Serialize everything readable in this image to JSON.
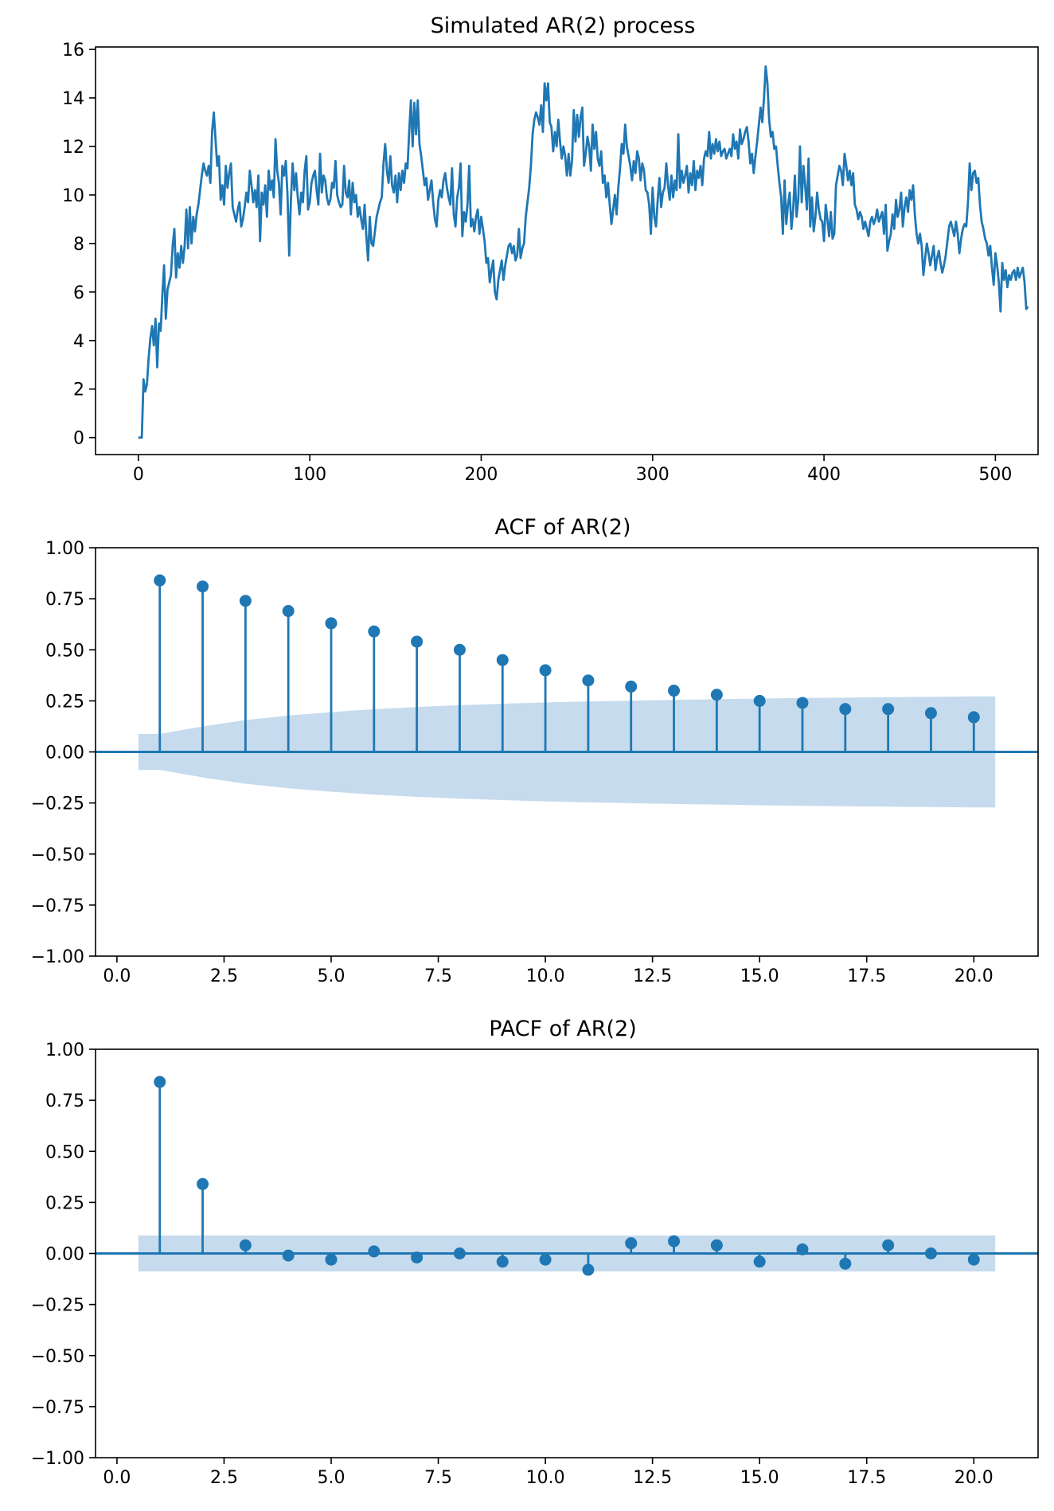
{
  "chart_data": [
    {
      "id": "series",
      "type": "line",
      "title": "Simulated AR(2) process",
      "xlabel": "",
      "ylabel": "",
      "xlim": [
        -25,
        524.9
      ],
      "ylim": [
        -0.7,
        16.1
      ],
      "x_ticks": [
        0,
        100,
        200,
        300,
        400,
        500
      ],
      "x_tick_labels": [
        "0",
        "100",
        "200",
        "300",
        "400",
        "500"
      ],
      "y_ticks": [
        0,
        2,
        4,
        6,
        8,
        10,
        12,
        14,
        16
      ],
      "y_tick_labels": [
        "0",
        "2",
        "4",
        "6",
        "8",
        "10",
        "12",
        "14",
        "16"
      ],
      "grid": false,
      "color": "#1f77b4",
      "series": [
        {
          "name": "AR(2)",
          "x_start": 0,
          "x_step": 1,
          "values": [
            0.0,
            0.0,
            0.0,
            2.4,
            1.9,
            2.2,
            3.3,
            4.1,
            4.6,
            3.8,
            4.9,
            2.9,
            4.7,
            4.4,
            5.9,
            7.1,
            4.9,
            6.1,
            6.4,
            6.7,
            7.9,
            8.6,
            6.6,
            7.6,
            7.0,
            7.9,
            7.2,
            7.9,
            9.4,
            7.8,
            9.5,
            8.0,
            9.1,
            8.5,
            9.2,
            9.6,
            10.2,
            10.8,
            11.3,
            11.0,
            10.8,
            11.2,
            10.5,
            12.6,
            13.4,
            12.3,
            11.2,
            11.6,
            9.8,
            10.4,
            9.6,
            11.2,
            10.3,
            10.9,
            11.3,
            9.5,
            9.2,
            8.9,
            9.4,
            9.7,
            8.7,
            9.0,
            9.5,
            10.1,
            9.7,
            11.0,
            10.4,
            9.7,
            10.2,
            9.5,
            10.8,
            8.1,
            10.1,
            9.6,
            10.4,
            9.1,
            11.0,
            10.2,
            10.6,
            9.9,
            12.3,
            11.0,
            10.5,
            9.2,
            11.2,
            10.8,
            11.4,
            10.0,
            7.5,
            9.8,
            11.3,
            10.2,
            10.9,
            9.9,
            9.2,
            10.1,
            9.7,
            11.0,
            11.6,
            9.4,
            9.7,
            10.5,
            10.8,
            11.0,
            10.2,
            9.6,
            11.7,
            10.1,
            10.8,
            10.6,
            9.9,
            9.6,
            9.8,
            10.5,
            10.3,
            11.4,
            10.0,
            9.7,
            9.5,
            9.6,
            11.2,
            10.1,
            9.9,
            10.6,
            9.2,
            10.5,
            9.7,
            10.0,
            9.1,
            9.5,
            9.0,
            8.6,
            9.6,
            8.3,
            7.3,
            9.1,
            8.0,
            7.9,
            8.5,
            9.1,
            9.4,
            9.7,
            9.9,
            11.3,
            12.1,
            11.0,
            10.5,
            11.6,
            10.4,
            10.1,
            10.8,
            9.7,
            10.9,
            10.2,
            11.0,
            10.5,
            11.3,
            11.1,
            12.6,
            13.9,
            12.0,
            13.8,
            12.5,
            13.9,
            12.1,
            11.6,
            11.0,
            10.4,
            10.7,
            9.8,
            10.2,
            10.6,
            9.7,
            9.0,
            8.7,
            9.8,
            10.2,
            9.9,
            10.6,
            10.9,
            10.3,
            9.9,
            9.6,
            11.1,
            9.2,
            8.7,
            9.9,
            10.3,
            11.3,
            8.3,
            9.3,
            8.9,
            9.6,
            11.2,
            8.7,
            9.0,
            8.5,
            9.1,
            9.4,
            8.4,
            9.1,
            8.6,
            8.1,
            7.2,
            7.4,
            6.4,
            6.9,
            7.3,
            6.0,
            5.7,
            6.5,
            6.9,
            7.3,
            6.5,
            7.1,
            7.5,
            7.9,
            8.0,
            7.6,
            7.9,
            7.3,
            7.5,
            8.6,
            7.4,
            7.8,
            8.0,
            9.1,
            9.7,
            10.3,
            11.2,
            12.5,
            13.1,
            13.4,
            13.2,
            12.9,
            13.7,
            12.6,
            14.6,
            13.9,
            14.6,
            13.0,
            12.8,
            11.8,
            12.6,
            12.0,
            13.1,
            12.2,
            11.5,
            12.0,
            11.6,
            10.8,
            11.7,
            10.8,
            11.4,
            13.5,
            12.2,
            13.3,
            12.4,
            13.2,
            13.6,
            11.2,
            11.7,
            12.4,
            12.0,
            11.0,
            12.9,
            11.9,
            12.6,
            11.5,
            11.2,
            11.8,
            10.5,
            10.8,
            9.9,
            10.5,
            9.6,
            8.8,
            9.4,
            10.0,
            9.2,
            10.3,
            11.1,
            12.1,
            11.7,
            12.9,
            12.0,
            11.6,
            11.2,
            10.6,
            11.4,
            10.9,
            11.8,
            11.5,
            10.6,
            11.3,
            11.0,
            10.2,
            10.1,
            9.6,
            8.4,
            10.3,
            9.1,
            8.7,
            9.8,
            10.7,
            9.5,
            10.1,
            10.3,
            11.3,
            10.4,
            9.8,
            10.8,
            9.9,
            10.6,
            10.2,
            12.5,
            10.3,
            11.0,
            10.5,
            10.8,
            11.2,
            10.1,
            10.9,
            10.4,
            11.4,
            10.2,
            11.0,
            10.7,
            11.2,
            10.4,
            11.5,
            11.8,
            11.6,
            12.6,
            11.5,
            12.1,
            11.7,
            12.3,
            11.8,
            12.2,
            11.6,
            11.8,
            11.9,
            11.5,
            11.7,
            11.9,
            11.6,
            12.5,
            11.9,
            12.2,
            11.5,
            12.7,
            12.1,
            12.3,
            12.6,
            12.8,
            12.2,
            11.3,
            11.7,
            10.9,
            11.6,
            12.2,
            12.9,
            13.6,
            13.0,
            14.0,
            15.3,
            14.6,
            13.1,
            12.4,
            12.6,
            11.9,
            12.0,
            11.2,
            10.5,
            9.9,
            8.4,
            10.6,
            8.8,
            9.6,
            10.1,
            8.6,
            9.4,
            10.8,
            9.1,
            9.8,
            12.0,
            9.7,
            11.2,
            10.4,
            9.4,
            11.5,
            8.7,
            9.9,
            8.5,
            9.1,
            10.1,
            9.4,
            9.0,
            8.9,
            8.1,
            9.6,
            9.0,
            8.3,
            9.3,
            8.2,
            8.4,
            10.4,
            10.8,
            11.2,
            11.0,
            10.4,
            11.7,
            11.2,
            10.6,
            11.0,
            10.4,
            10.9,
            9.6,
            9.4,
            9.0,
            9.3,
            9.1,
            8.6,
            8.9,
            8.6,
            8.3,
            8.9,
            9.1,
            8.8,
            9.0,
            9.4,
            8.9,
            9.1,
            9.3,
            8.4,
            9.6,
            7.7,
            8.1,
            8.4,
            9.2,
            8.6,
            9.8,
            9.1,
            9.4,
            10.1,
            8.7,
            9.5,
            9.9,
            9.3,
            10.2,
            9.8,
            10.4,
            9.2,
            8.4,
            8.0,
            8.4,
            7.9,
            6.7,
            7.4,
            8.0,
            7.6,
            7.1,
            7.5,
            7.9,
            6.9,
            7.4,
            7.7,
            7.2,
            6.8,
            7.1,
            7.5,
            8.1,
            8.7,
            8.9,
            8.6,
            8.3,
            8.9,
            8.4,
            7.6,
            8.2,
            8.6,
            8.8,
            8.7,
            9.7,
            11.3,
            10.2,
            10.9,
            11.0,
            10.5,
            10.7,
            9.6,
            8.9,
            8.6,
            8.2,
            8.0,
            7.5,
            7.9,
            7.0,
            6.3,
            7.6,
            7.1,
            6.4,
            5.2,
            7.2,
            6.5,
            6.9,
            6.2,
            6.7,
            6.5,
            6.8,
            6.9,
            6.5,
            7.0,
            6.6,
            6.8,
            7.0,
            6.4,
            5.3,
            5.4
          ]
        }
      ]
    },
    {
      "id": "acf",
      "type": "stem",
      "title": "ACF of AR(2)",
      "xlabel": "",
      "ylabel": "",
      "xlim": [
        -0.5,
        21.5
      ],
      "ylim": [
        -1.0,
        1.0
      ],
      "x_ticks": [
        0,
        2.5,
        5,
        7.5,
        10,
        12.5,
        15,
        17.5,
        20
      ],
      "x_tick_labels": [
        "0.0",
        "2.5",
        "5.0",
        "7.5",
        "10.0",
        "12.5",
        "15.0",
        "17.5",
        "20.0"
      ],
      "y_ticks": [
        -1,
        -0.75,
        -0.5,
        -0.25,
        0,
        0.25,
        0.5,
        0.75,
        1
      ],
      "y_tick_labels": [
        "−1.00",
        "−0.75",
        "−0.50",
        "−0.25",
        "0.00",
        "0.25",
        "0.50",
        "0.75",
        "1.00"
      ],
      "grid": false,
      "color": "#1f77b4",
      "band_color": "#c6dbed",
      "lags": [
        1,
        2,
        3,
        4,
        5,
        6,
        7,
        8,
        9,
        10,
        11,
        12,
        13,
        14,
        15,
        16,
        17,
        18,
        19,
        20
      ],
      "values": [
        0.84,
        0.81,
        0.74,
        0.69,
        0.63,
        0.59,
        0.54,
        0.5,
        0.45,
        0.4,
        0.35,
        0.32,
        0.3,
        0.28,
        0.25,
        0.24,
        0.21,
        0.21,
        0.19,
        0.17
      ],
      "confidence_band": {
        "x": [
          0.5,
          1,
          2,
          3,
          4,
          5,
          6,
          7,
          8,
          9,
          10,
          11,
          12,
          13,
          14,
          15,
          16,
          17,
          18,
          19,
          20,
          20.5
        ],
        "upper": [
          0.088,
          0.088,
          0.125,
          0.156,
          0.178,
          0.195,
          0.209,
          0.22,
          0.229,
          0.236,
          0.242,
          0.247,
          0.251,
          0.255,
          0.258,
          0.261,
          0.264,
          0.266,
          0.268,
          0.27,
          0.272,
          0.272
        ]
      }
    },
    {
      "id": "pacf",
      "type": "stem",
      "title": "PACF of AR(2)",
      "xlabel": "",
      "ylabel": "",
      "xlim": [
        -0.5,
        21.5
      ],
      "ylim": [
        -1.0,
        1.0
      ],
      "x_ticks": [
        0,
        2.5,
        5,
        7.5,
        10,
        12.5,
        15,
        17.5,
        20
      ],
      "x_tick_labels": [
        "0.0",
        "2.5",
        "5.0",
        "7.5",
        "10.0",
        "12.5",
        "15.0",
        "17.5",
        "20.0"
      ],
      "y_ticks": [
        -1,
        -0.75,
        -0.5,
        -0.25,
        0,
        0.25,
        0.5,
        0.75,
        1
      ],
      "y_tick_labels": [
        "−1.00",
        "−0.75",
        "−0.50",
        "−0.25",
        "0.00",
        "0.25",
        "0.50",
        "0.75",
        "1.00"
      ],
      "grid": false,
      "color": "#1f77b4",
      "band_color": "#c6dbed",
      "lags": [
        1,
        2,
        3,
        4,
        5,
        6,
        7,
        8,
        9,
        10,
        11,
        12,
        13,
        14,
        15,
        16,
        17,
        18,
        19,
        20
      ],
      "values": [
        0.84,
        0.34,
        0.04,
        -0.01,
        -0.03,
        0.01,
        -0.02,
        0.0,
        -0.04,
        -0.03,
        -0.08,
        0.05,
        0.06,
        0.04,
        -0.04,
        0.02,
        -0.05,
        0.04,
        0.0,
        -0.03
      ],
      "confidence_band": {
        "x": [
          0.5,
          20.5
        ],
        "upper": [
          0.088,
          0.088
        ]
      }
    }
  ]
}
